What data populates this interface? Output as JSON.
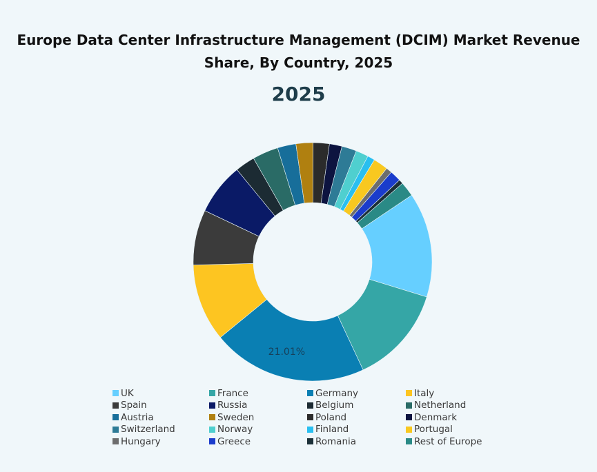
{
  "chart_data": {
    "type": "donut",
    "title": "Europe Data Center Infrastructure Management (DCIM) Market Revenue Share, By Country, 2025",
    "subtitle": "2025",
    "legend_position": "bottom",
    "start_angle_deg": 56,
    "categories": [
      "UK",
      "France",
      "Germany",
      "Italy",
      "Spain",
      "Russia",
      "Belgium",
      "Netherland",
      "Austria",
      "Sweden",
      "Poland",
      "Denmark",
      "Switzerland",
      "Norway",
      "Finland",
      "Portugal",
      "Hungary",
      "Greece",
      "Romania",
      "Rest of Europe"
    ],
    "values": [
      14.2,
      13.3,
      21.01,
      10.5,
      7.5,
      7.0,
      2.69,
      3.5,
      2.5,
      2.3,
      2.2,
      1.7,
      2.0,
      1.7,
      1.0,
      2.0,
      0.8,
      1.5,
      0.6,
      2.0
    ],
    "colors": [
      "#66cfff",
      "#35a6a6",
      "#0a7fb3",
      "#fdc521",
      "#3b3b3b",
      "#0a1a66",
      "#1c2b33",
      "#2a6b66",
      "#176e9a",
      "#b08010",
      "#2b2b2b",
      "#0d1440",
      "#2e7b96",
      "#4fcfcf",
      "#29bff0",
      "#f8c820",
      "#6d6d6d",
      "#1a3ccc",
      "#1b3038",
      "#2a8a86"
    ],
    "data_labels": [
      {
        "category": "Germany",
        "text": "21.01%"
      }
    ]
  }
}
